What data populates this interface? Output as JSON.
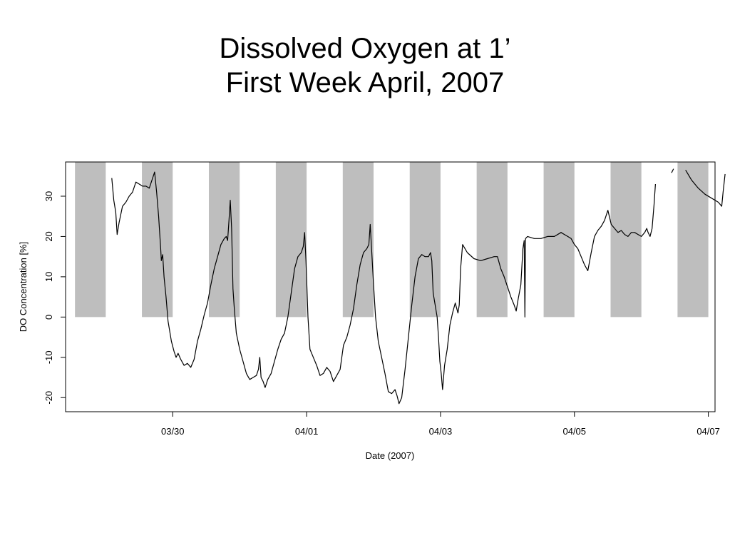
{
  "title_lines": [
    "Dissolved Oxygen at 1’",
    "First Week April, 2007"
  ],
  "chart_data": {
    "type": "line",
    "title": "Dissolved Oxygen at 1’ First Week April, 2007",
    "xlabel": "Date (2007)",
    "ylabel": "DO Concentration [%]",
    "x_unit": "days after 03/29 00:00 (2007)",
    "xlim": [
      -0.6,
      9.1
    ],
    "ylim": [
      -23.5,
      38.5
    ],
    "x_ticks": [
      {
        "value": 1,
        "label": "03/30"
      },
      {
        "value": 3,
        "label": "04/01"
      },
      {
        "value": 5,
        "label": "04/03"
      },
      {
        "value": 7,
        "label": "04/05"
      },
      {
        "value": 9,
        "label": "04/07"
      }
    ],
    "y_ticks": [
      -20,
      -10,
      0,
      10,
      20,
      30
    ],
    "night_bands": {
      "y_range": [
        0,
        38.5
      ],
      "color": "#bebebe",
      "intervals": [
        [
          -0.46,
          0.0
        ],
        [
          0.54,
          1.0
        ],
        [
          1.54,
          2.0
        ],
        [
          2.54,
          3.0
        ],
        [
          3.54,
          4.0
        ],
        [
          4.54,
          5.0
        ],
        [
          5.54,
          6.0
        ],
        [
          6.54,
          7.0
        ],
        [
          7.54,
          8.0
        ],
        [
          8.54,
          9.0
        ]
      ]
    },
    "grid": false,
    "legend": "none",
    "series": [
      {
        "color": "#000000",
        "segments": [
          [
            [
              0.09,
              34.5
            ],
            [
              0.12,
              29.0
            ],
            [
              0.15,
              26.0
            ],
            [
              0.17,
              20.5
            ],
            [
              0.2,
              23.5
            ],
            [
              0.25,
              27.5
            ],
            [
              0.3,
              28.5
            ],
            [
              0.35,
              30.0
            ],
            [
              0.4,
              31.0
            ],
            [
              0.45,
              33.5
            ],
            [
              0.5,
              33.0
            ],
            [
              0.55,
              32.5
            ],
            [
              0.6,
              32.5
            ],
            [
              0.65,
              32.0
            ],
            [
              0.7,
              34.5
            ],
            [
              0.73,
              36.0
            ],
            [
              0.76,
              31.0
            ],
            [
              0.79,
              25.0
            ],
            [
              0.82,
              17.0
            ],
            [
              0.83,
              14.0
            ],
            [
              0.85,
              15.5
            ],
            [
              0.87,
              10.0
            ],
            [
              0.9,
              5.0
            ],
            [
              0.93,
              -1.0
            ],
            [
              0.95,
              -3.0
            ],
            [
              0.98,
              -6.0
            ],
            [
              1.02,
              -8.5
            ],
            [
              1.05,
              -10.0
            ],
            [
              1.08,
              -9.0
            ],
            [
              1.12,
              -10.5
            ],
            [
              1.17,
              -12.0
            ],
            [
              1.22,
              -11.5
            ],
            [
              1.27,
              -12.5
            ],
            [
              1.32,
              -10.5
            ],
            [
              1.37,
              -6.0
            ],
            [
              1.42,
              -3.0
            ],
            [
              1.47,
              0.5
            ],
            [
              1.52,
              3.5
            ],
            [
              1.57,
              8.0
            ],
            [
              1.62,
              12.0
            ],
            [
              1.67,
              15.0
            ],
            [
              1.72,
              18.0
            ],
            [
              1.77,
              19.5
            ],
            [
              1.8,
              20.0
            ],
            [
              1.82,
              19.0
            ],
            [
              1.84,
              24.0
            ],
            [
              1.86,
              29.0
            ],
            [
              1.88,
              22.0
            ],
            [
              1.9,
              7.0
            ],
            [
              1.92,
              2.0
            ],
            [
              1.95,
              -4.0
            ],
            [
              2.0,
              -8.0
            ],
            [
              2.05,
              -11.0
            ],
            [
              2.1,
              -14.0
            ],
            [
              2.15,
              -15.5
            ],
            [
              2.2,
              -15.0
            ],
            [
              2.25,
              -14.5
            ],
            [
              2.28,
              -13.0
            ],
            [
              2.3,
              -10.0
            ],
            [
              2.32,
              -15.0
            ],
            [
              2.35,
              -16.0
            ],
            [
              2.38,
              -17.5
            ],
            [
              2.42,
              -15.5
            ],
            [
              2.47,
              -14.0
            ],
            [
              2.52,
              -11.0
            ],
            [
              2.57,
              -8.0
            ],
            [
              2.62,
              -5.5
            ],
            [
              2.67,
              -4.0
            ],
            [
              2.72,
              0.0
            ],
            [
              2.77,
              6.0
            ],
            [
              2.82,
              12.0
            ],
            [
              2.87,
              15.0
            ],
            [
              2.92,
              16.0
            ],
            [
              2.95,
              17.5
            ],
            [
              2.97,
              21.0
            ],
            [
              2.99,
              14.0
            ],
            [
              3.02,
              0.0
            ],
            [
              3.05,
              -8.0
            ],
            [
              3.1,
              -10.0
            ],
            [
              3.15,
              -12.0
            ],
            [
              3.2,
              -14.5
            ],
            [
              3.25,
              -14.0
            ],
            [
              3.3,
              -12.5
            ],
            [
              3.35,
              -13.5
            ],
            [
              3.4,
              -16.0
            ],
            [
              3.45,
              -14.5
            ],
            [
              3.5,
              -13.0
            ],
            [
              3.55,
              -7.0
            ],
            [
              3.6,
              -5.0
            ],
            [
              3.65,
              -2.0
            ],
            [
              3.7,
              2.0
            ],
            [
              3.75,
              8.0
            ],
            [
              3.8,
              13.0
            ],
            [
              3.85,
              16.0
            ],
            [
              3.9,
              17.0
            ],
            [
              3.93,
              18.0
            ],
            [
              3.95,
              23.0
            ],
            [
              3.97,
              17.0
            ],
            [
              4.0,
              8.0
            ],
            [
              4.03,
              0.0
            ],
            [
              4.07,
              -6.0
            ],
            [
              4.12,
              -10.0
            ],
            [
              4.17,
              -14.0
            ],
            [
              4.22,
              -18.5
            ],
            [
              4.27,
              -19.0
            ],
            [
              4.32,
              -18.0
            ],
            [
              4.35,
              -19.5
            ],
            [
              4.38,
              -21.5
            ],
            [
              4.42,
              -20.0
            ],
            [
              4.47,
              -13.0
            ],
            [
              4.52,
              -5.0
            ],
            [
              4.57,
              3.0
            ],
            [
              4.62,
              10.0
            ],
            [
              4.67,
              14.5
            ],
            [
              4.72,
              15.5
            ],
            [
              4.77,
              15.0
            ],
            [
              4.82,
              15.0
            ],
            [
              4.85,
              16.0
            ],
            [
              4.87,
              14.0
            ],
            [
              4.89,
              6.0
            ],
            [
              4.92,
              3.0
            ],
            [
              4.95,
              0.0
            ],
            [
              4.97,
              -5.0
            ],
            [
              4.99,
              -11.0
            ],
            [
              5.01,
              -14.0
            ],
            [
              5.03,
              -18.0
            ],
            [
              5.06,
              -12.0
            ],
            [
              5.1,
              -8.0
            ],
            [
              5.14,
              -2.0
            ],
            [
              5.18,
              1.0
            ],
            [
              5.22,
              3.5
            ],
            [
              5.26,
              1.0
            ],
            [
              5.28,
              3.0
            ],
            [
              5.3,
              12.0
            ],
            [
              5.33,
              18.0
            ],
            [
              5.4,
              16.0
            ],
            [
              5.5,
              14.5
            ],
            [
              5.6,
              14.0
            ],
            [
              5.7,
              14.5
            ],
            [
              5.8,
              15.0
            ],
            [
              5.85,
              15.0
            ],
            [
              5.9,
              12.0
            ],
            [
              5.95,
              10.0
            ],
            [
              6.0,
              7.5
            ],
            [
              6.05,
              5.0
            ],
            [
              6.1,
              3.0
            ],
            [
              6.13,
              1.5
            ],
            [
              6.16,
              4.5
            ],
            [
              6.2,
              8.0
            ],
            [
              6.23,
              17.0
            ],
            [
              6.25,
              19.0
            ],
            [
              6.26,
              0.0
            ],
            [
              6.27,
              19.5
            ],
            [
              6.3,
              20.0
            ],
            [
              6.4,
              19.5
            ],
            [
              6.5,
              19.5
            ],
            [
              6.6,
              20.0
            ],
            [
              6.7,
              20.0
            ],
            [
              6.8,
              21.0
            ],
            [
              6.85,
              20.5
            ],
            [
              6.9,
              20.0
            ],
            [
              6.95,
              19.5
            ],
            [
              7.0,
              18.0
            ],
            [
              7.05,
              17.0
            ],
            [
              7.1,
              15.0
            ],
            [
              7.15,
              13.0
            ],
            [
              7.2,
              11.5
            ],
            [
              7.25,
              16.0
            ],
            [
              7.3,
              20.0
            ],
            [
              7.35,
              21.5
            ],
            [
              7.4,
              22.5
            ],
            [
              7.45,
              24.0
            ],
            [
              7.5,
              26.5
            ],
            [
              7.55,
              23.0
            ],
            [
              7.6,
              22.0
            ],
            [
              7.65,
              21.0
            ],
            [
              7.7,
              21.5
            ],
            [
              7.75,
              20.5
            ],
            [
              7.8,
              20.0
            ],
            [
              7.85,
              21.0
            ],
            [
              7.9,
              21.0
            ],
            [
              7.95,
              20.5
            ],
            [
              8.0,
              20.0
            ],
            [
              8.05,
              21.0
            ],
            [
              8.08,
              22.0
            ],
            [
              8.1,
              21.0
            ],
            [
              8.13,
              20.0
            ],
            [
              8.16,
              22.0
            ],
            [
              8.19,
              28.0
            ],
            [
              8.21,
              33.0
            ]
          ],
          [
            [
              8.45,
              35.8
            ],
            [
              8.48,
              36.8
            ]
          ],
          [
            [
              8.66,
              36.5
            ],
            [
              8.75,
              34.0
            ],
            [
              8.85,
              32.0
            ],
            [
              8.95,
              30.5
            ],
            [
              9.05,
              29.5
            ],
            [
              9.15,
              28.5
            ],
            [
              9.2,
              27.5
            ],
            [
              9.22,
              31.0
            ],
            [
              9.25,
              35.5
            ]
          ]
        ]
      }
    ]
  }
}
